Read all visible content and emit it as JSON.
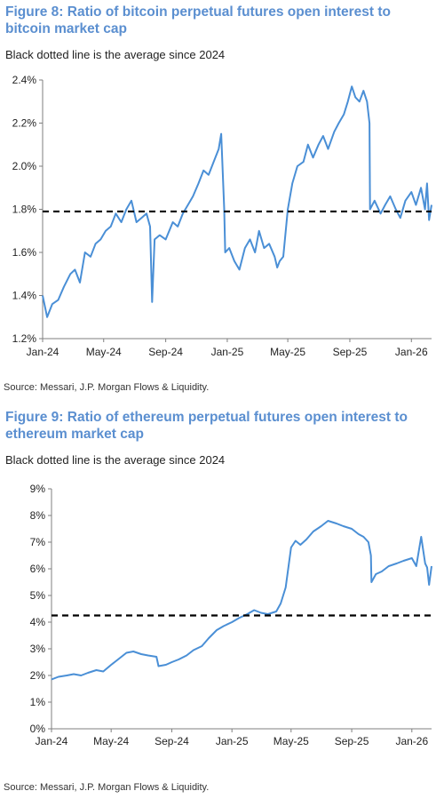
{
  "colors": {
    "title": "#5b8fd0",
    "series": "#4a8fd6",
    "average_line": "#000000"
  },
  "figures": [
    {
      "title": "Figure 8: Ratio of bitcoin perpetual futures open interest to bitcoin market cap",
      "subtitle": "Black dotted line is the average since 2024",
      "source": "Source: Messari, J.P. Morgan Flows & Liquidity."
    },
    {
      "title": "Figure 9: Ratio of ethereum perpetual futures open interest to ethereum market cap",
      "subtitle": "Black dotted line is the average since 2024",
      "source": "Source: Messari, J.P. Morgan Flows & Liquidity."
    }
  ],
  "chart_data": [
    {
      "type": "line",
      "title": "Figure 8: Ratio of bitcoin perpetual futures open interest to bitcoin market cap",
      "xlabel": "",
      "ylabel": "",
      "ylim": [
        1.2,
        2.4
      ],
      "y_unit": "%",
      "y_ticks": [
        "1.2%",
        "1.4%",
        "1.6%",
        "1.8%",
        "2.0%",
        "2.2%",
        "2.4%"
      ],
      "y_tick_values": [
        1.2,
        1.4,
        1.6,
        1.8,
        2.0,
        2.2,
        2.4
      ],
      "x_range": [
        "2024-01-01",
        "2026-02-10"
      ],
      "x_ticks": [
        "Jan-24",
        "May-24",
        "Sep-24",
        "Jan-25",
        "May-25",
        "Sep-25",
        "Jan-26"
      ],
      "x_tick_dates": [
        "2024-01-01",
        "2024-05-01",
        "2024-09-01",
        "2025-01-01",
        "2025-05-01",
        "2025-09-01",
        "2026-01-01"
      ],
      "average_line": 1.79,
      "grid": false,
      "series": [
        {
          "x": [
            "2024-01-01",
            "2024-01-10",
            "2024-01-20",
            "2024-02-01",
            "2024-02-12",
            "2024-02-25",
            "2024-03-05",
            "2024-03-15",
            "2024-03-25",
            "2024-04-05",
            "2024-04-15",
            "2024-04-25",
            "2024-05-05",
            "2024-05-15",
            "2024-05-25",
            "2024-06-05",
            "2024-06-15",
            "2024-06-25",
            "2024-07-05",
            "2024-07-15",
            "2024-07-25",
            "2024-08-01",
            "2024-08-05",
            "2024-08-10",
            "2024-08-20",
            "2024-09-01",
            "2024-09-15",
            "2024-09-25",
            "2024-10-05",
            "2024-10-15",
            "2024-10-25",
            "2024-11-05",
            "2024-11-15",
            "2024-11-25",
            "2024-12-05",
            "2024-12-15",
            "2024-12-20",
            "2024-12-26",
            "2024-12-28",
            "2025-01-05",
            "2025-01-15",
            "2025-01-25",
            "2025-02-05",
            "2025-02-15",
            "2025-02-25",
            "2025-03-05",
            "2025-03-15",
            "2025-03-25",
            "2025-04-05",
            "2025-04-10",
            "2025-04-15",
            "2025-04-22",
            "2025-05-01",
            "2025-05-10",
            "2025-05-20",
            "2025-06-01",
            "2025-06-10",
            "2025-06-20",
            "2025-07-01",
            "2025-07-10",
            "2025-07-20",
            "2025-08-01",
            "2025-08-10",
            "2025-08-20",
            "2025-08-28",
            "2025-09-05",
            "2025-09-12",
            "2025-09-20",
            "2025-09-28",
            "2025-10-05",
            "2025-10-10",
            "2025-10-11",
            "2025-10-20",
            "2025-11-01",
            "2025-11-10",
            "2025-11-20",
            "2025-12-01",
            "2025-12-10",
            "2025-12-20",
            "2026-01-01",
            "2026-01-10",
            "2026-01-20",
            "2026-01-28",
            "2026-02-01",
            "2026-02-05",
            "2026-02-10"
          ],
          "values": [
            1.4,
            1.3,
            1.36,
            1.38,
            1.44,
            1.5,
            1.52,
            1.46,
            1.6,
            1.58,
            1.64,
            1.66,
            1.7,
            1.72,
            1.78,
            1.74,
            1.8,
            1.84,
            1.74,
            1.76,
            1.78,
            1.72,
            1.37,
            1.66,
            1.68,
            1.66,
            1.74,
            1.72,
            1.78,
            1.82,
            1.86,
            1.92,
            1.98,
            1.96,
            2.02,
            2.08,
            2.15,
            1.8,
            1.6,
            1.62,
            1.56,
            1.52,
            1.62,
            1.66,
            1.6,
            1.7,
            1.62,
            1.64,
            1.58,
            1.53,
            1.56,
            1.58,
            1.8,
            1.92,
            2.0,
            2.02,
            2.1,
            2.04,
            2.1,
            2.14,
            2.08,
            2.16,
            2.2,
            2.24,
            2.3,
            2.37,
            2.32,
            2.3,
            2.35,
            2.3,
            2.2,
            1.8,
            1.84,
            1.78,
            1.82,
            1.86,
            1.8,
            1.76,
            1.84,
            1.88,
            1.82,
            1.9,
            1.8,
            1.92,
            1.75,
            1.82
          ]
        }
      ]
    },
    {
      "type": "line",
      "title": "Figure 9: Ratio of ethereum perpetual futures open interest to ethereum market cap",
      "xlabel": "",
      "ylabel": "",
      "ylim": [
        0,
        9
      ],
      "y_unit": "%",
      "y_ticks": [
        "0%",
        "1%",
        "2%",
        "3%",
        "4%",
        "5%",
        "6%",
        "7%",
        "8%",
        "9%"
      ],
      "y_tick_values": [
        0,
        1,
        2,
        3,
        4,
        5,
        6,
        7,
        8,
        9
      ],
      "x_range": [
        "2024-01-01",
        "2026-02-10"
      ],
      "x_ticks": [
        "Jan-24",
        "May-24",
        "Sep-24",
        "Jan-25",
        "May-25",
        "Sep-25",
        "Jan-26"
      ],
      "x_tick_dates": [
        "2024-01-01",
        "2024-05-01",
        "2024-09-01",
        "2025-01-01",
        "2025-05-01",
        "2025-09-01",
        "2026-01-01"
      ],
      "average_line": 4.25,
      "grid": false,
      "series": [
        {
          "x": [
            "2024-01-01",
            "2024-01-15",
            "2024-02-01",
            "2024-02-15",
            "2024-03-01",
            "2024-03-15",
            "2024-04-01",
            "2024-04-15",
            "2024-05-01",
            "2024-05-15",
            "2024-06-01",
            "2024-06-15",
            "2024-07-01",
            "2024-07-15",
            "2024-08-01",
            "2024-08-05",
            "2024-08-20",
            "2024-09-01",
            "2024-09-15",
            "2024-10-01",
            "2024-10-15",
            "2024-11-01",
            "2024-11-15",
            "2024-12-01",
            "2024-12-15",
            "2025-01-01",
            "2025-01-15",
            "2025-02-01",
            "2025-02-15",
            "2025-03-01",
            "2025-03-15",
            "2025-04-01",
            "2025-04-10",
            "2025-04-20",
            "2025-05-01",
            "2025-05-10",
            "2025-05-20",
            "2025-06-01",
            "2025-06-15",
            "2025-07-01",
            "2025-07-15",
            "2025-08-01",
            "2025-08-15",
            "2025-09-01",
            "2025-09-15",
            "2025-09-25",
            "2025-10-05",
            "2025-10-10",
            "2025-10-11",
            "2025-10-20",
            "2025-11-01",
            "2025-11-15",
            "2025-12-01",
            "2025-12-15",
            "2026-01-01",
            "2026-01-10",
            "2026-01-20",
            "2026-01-28",
            "2026-02-01",
            "2026-02-05",
            "2026-02-10"
          ],
          "values": [
            1.85,
            1.95,
            2.0,
            2.05,
            2.0,
            2.1,
            2.2,
            2.15,
            2.4,
            2.6,
            2.85,
            2.9,
            2.8,
            2.75,
            2.7,
            2.35,
            2.4,
            2.5,
            2.6,
            2.75,
            2.95,
            3.1,
            3.4,
            3.7,
            3.85,
            4.0,
            4.15,
            4.3,
            4.45,
            4.35,
            4.3,
            4.4,
            4.7,
            5.3,
            6.8,
            7.05,
            6.9,
            7.1,
            7.4,
            7.6,
            7.8,
            7.7,
            7.6,
            7.5,
            7.3,
            7.2,
            7.0,
            6.5,
            5.5,
            5.8,
            5.9,
            6.1,
            6.2,
            6.3,
            6.4,
            6.1,
            7.2,
            6.2,
            6.05,
            5.4,
            6.1
          ]
        }
      ]
    }
  ]
}
